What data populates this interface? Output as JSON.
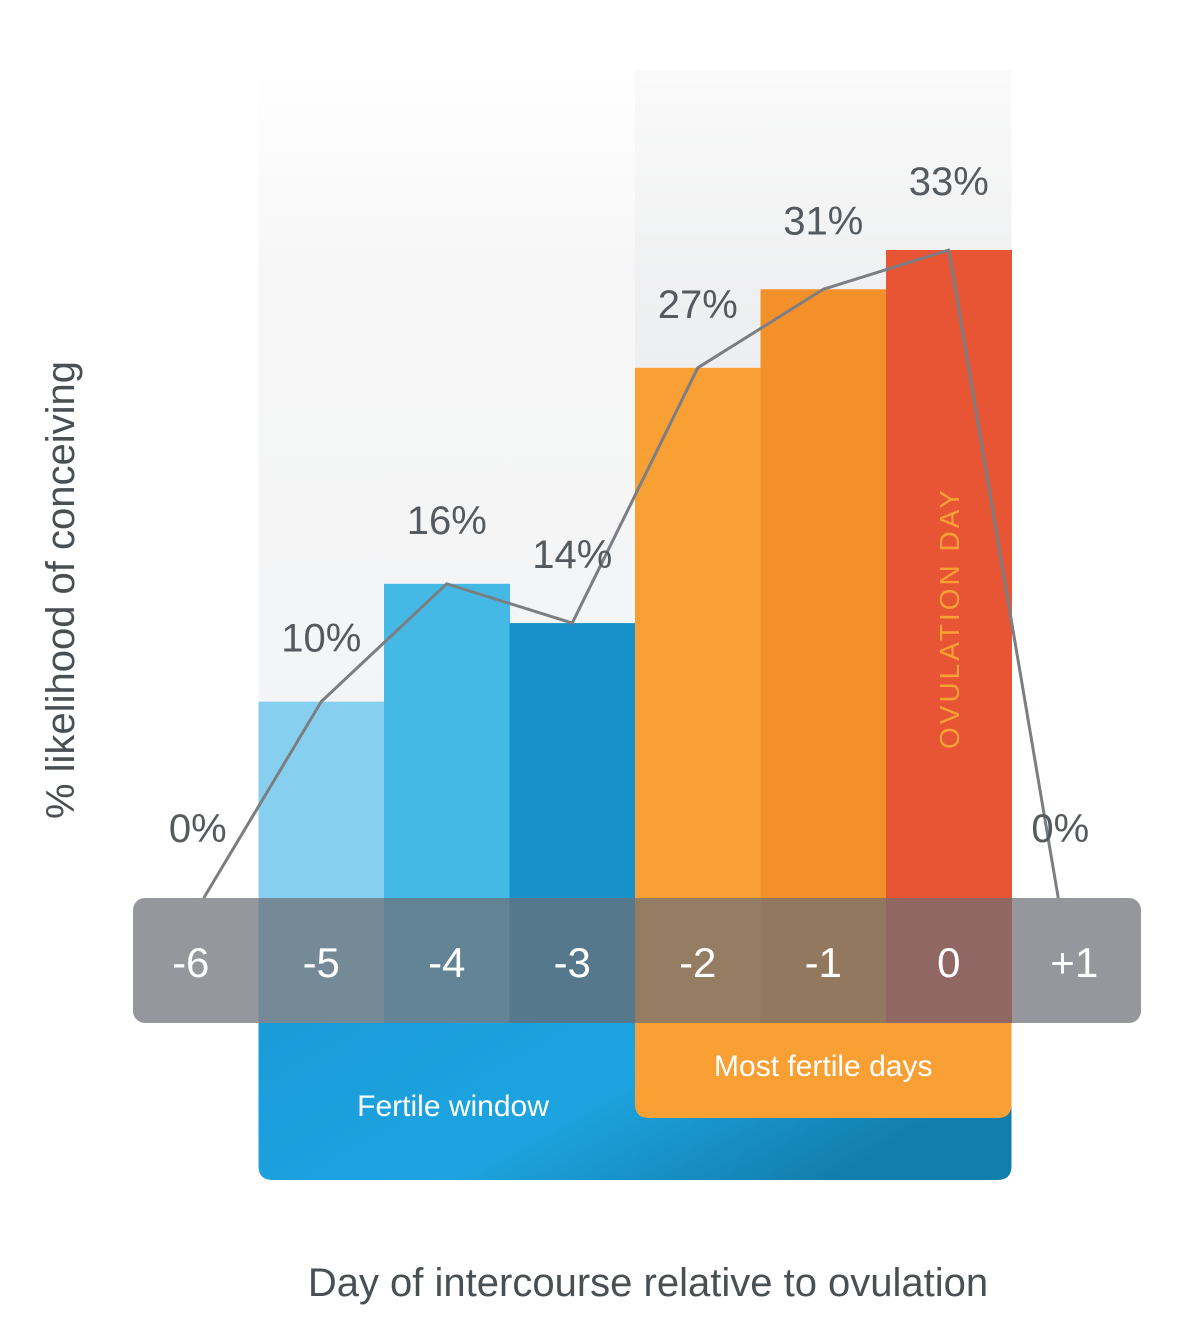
{
  "chart_data": {
    "type": "bar",
    "categories": [
      "-6",
      "-5",
      "-4",
      "-3",
      "-2",
      "-1",
      "0",
      "+1"
    ],
    "values": [
      0,
      10,
      16,
      14,
      27,
      31,
      33,
      0
    ],
    "value_labels": [
      "0%",
      "10%",
      "16%",
      "14%",
      "27%",
      "31%",
      "33%",
      "0%"
    ],
    "colors": [
      "",
      "#87cfee",
      "#45b9e6",
      "#1890c8",
      "#f9a035",
      "#f4902a",
      "#e85535",
      ""
    ],
    "line_color": "#7b7e82",
    "ylim": [
      0,
      33
    ],
    "xlabel": "Day of intercourse relative to ovulation",
    "ylabel": "% likelihood of conceiving",
    "grid": false,
    "legend": "none",
    "annotations": {
      "ovulation": "OVULATION DAY",
      "fertile_window": "Fertile window",
      "most_fertile": "Most fertile days"
    },
    "fertile_window_days": [
      "-5",
      "0"
    ],
    "most_fertile_days": [
      "-2",
      "0"
    ]
  }
}
